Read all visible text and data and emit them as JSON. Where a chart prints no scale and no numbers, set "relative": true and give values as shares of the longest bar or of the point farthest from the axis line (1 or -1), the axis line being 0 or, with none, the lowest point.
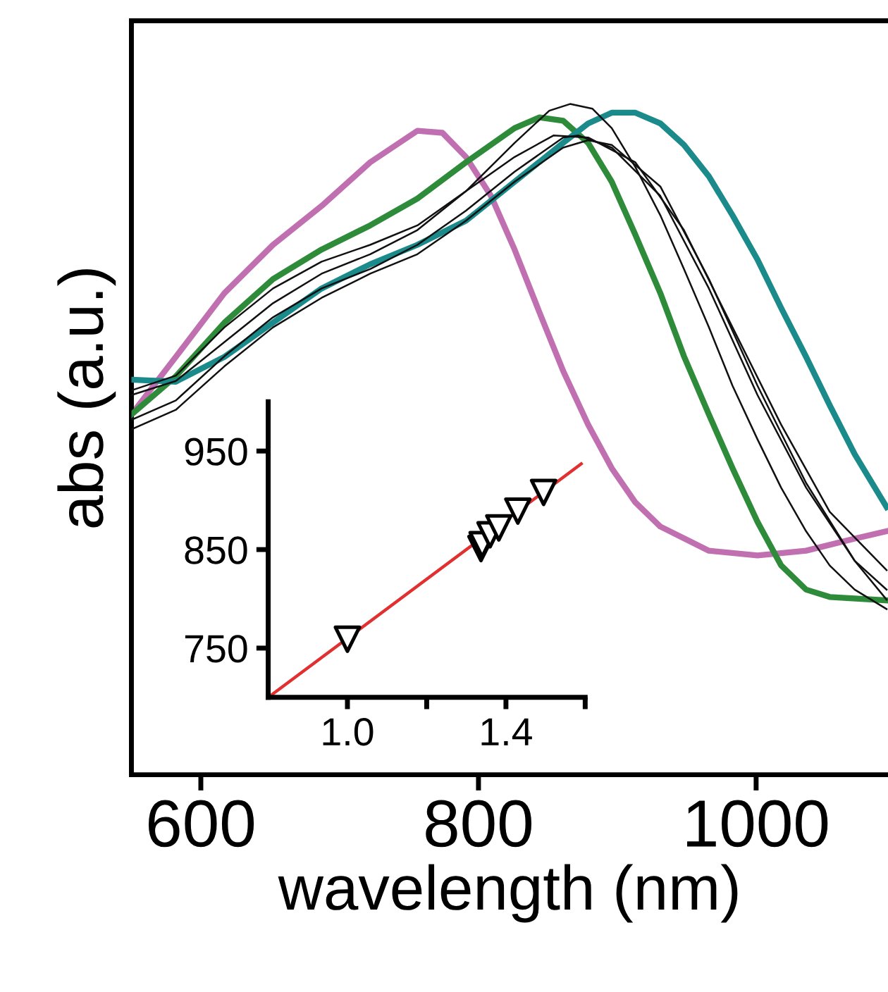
{
  "chart_data": [
    {
      "type": "line",
      "relative": true,
      "xlabel": "wavelength (nm)",
      "ylabel": "abs (a.u.)",
      "xlim": [
        550,
        1095
      ],
      "xticks": [
        600,
        800,
        1000
      ],
      "grid": false,
      "legend": false,
      "marker": "none",
      "line_style": "solid",
      "series": [
        {
          "color": "#c070b0",
          "x": [
            550,
            582,
            617,
            652,
            687,
            722,
            756,
            774,
            791,
            809,
            826,
            844,
            861,
            879,
            896,
            913,
            931,
            966,
            1001,
            1036,
            1071,
            1094
          ],
          "values": [
            0.537,
            0.623,
            0.718,
            0.79,
            0.848,
            0.913,
            0.96,
            0.957,
            0.921,
            0.863,
            0.783,
            0.689,
            0.602,
            0.522,
            0.457,
            0.406,
            0.37,
            0.334,
            0.327,
            0.334,
            0.352,
            0.363
          ]
        },
        {
          "color": "#2e8b3a",
          "x": [
            550,
            582,
            617,
            652,
            687,
            722,
            756,
            791,
            826,
            844,
            861,
            879,
            896,
            913,
            931,
            948,
            966,
            983,
            1001,
            1018,
            1036,
            1053,
            1094
          ],
          "values": [
            0.537,
            0.594,
            0.674,
            0.739,
            0.783,
            0.819,
            0.859,
            0.913,
            0.964,
            0.98,
            0.975,
            0.942,
            0.884,
            0.805,
            0.718,
            0.624,
            0.537,
            0.457,
            0.377,
            0.312,
            0.276,
            0.265,
            0.26
          ]
        },
        {
          "color": "#1a8a8a",
          "x": [
            550,
            582,
            617,
            652,
            687,
            722,
            756,
            791,
            826,
            861,
            879,
            896,
            913,
            931,
            948,
            966,
            983,
            1001,
            1018,
            1036,
            1053,
            1071,
            1094
          ],
          "values": [
            0.589,
            0.586,
            0.623,
            0.674,
            0.725,
            0.761,
            0.79,
            0.826,
            0.884,
            0.942,
            0.971,
            0.987,
            0.987,
            0.971,
            0.939,
            0.892,
            0.834,
            0.768,
            0.696,
            0.623,
            0.551,
            0.478,
            0.399
          ]
        },
        {
          "color": "#111111",
          "x": [
            550,
            582,
            617,
            652,
            687,
            722,
            756,
            791,
            826,
            851,
            866,
            882,
            896,
            913,
            931,
            948,
            966,
            983,
            1001,
            1018,
            1036,
            1053,
            1071,
            1094
          ],
          "values": [
            0.566,
            0.587,
            0.645,
            0.703,
            0.747,
            0.776,
            0.812,
            0.87,
            0.942,
            0.99,
            1.0,
            0.993,
            0.964,
            0.906,
            0.834,
            0.754,
            0.667,
            0.58,
            0.5,
            0.428,
            0.363,
            0.312,
            0.276,
            0.247
          ]
        },
        {
          "color": "#111111",
          "x": [
            550,
            582,
            617,
            652,
            687,
            722,
            756,
            791,
            826,
            861,
            872,
            896,
            931,
            966,
            1001,
            1036,
            1071,
            1094
          ],
          "values": [
            0.529,
            0.558,
            0.624,
            0.682,
            0.725,
            0.754,
            0.79,
            0.841,
            0.899,
            0.95,
            0.953,
            0.935,
            0.863,
            0.725,
            0.566,
            0.428,
            0.319,
            0.276
          ]
        },
        {
          "color": "#111111",
          "x": [
            550,
            582,
            617,
            652,
            687,
            722,
            756,
            791,
            826,
            861,
            879,
            896,
            931,
            966,
            1001,
            1036,
            1071,
            1094
          ],
          "values": [
            0.515,
            0.544,
            0.609,
            0.667,
            0.711,
            0.747,
            0.776,
            0.826,
            0.884,
            0.935,
            0.946,
            0.939,
            0.877,
            0.739,
            0.58,
            0.435,
            0.319,
            0.261
          ]
        },
        {
          "color": "#111111",
          "x": [
            550,
            582,
            617,
            652,
            687,
            722,
            756,
            791,
            826,
            854,
            879,
            913,
            948,
            983,
            1018,
            1053,
            1094
          ],
          "values": [
            0.573,
            0.595,
            0.667,
            0.725,
            0.765,
            0.79,
            0.819,
            0.87,
            0.921,
            0.953,
            0.95,
            0.913,
            0.812,
            0.667,
            0.522,
            0.392,
            0.305
          ]
        }
      ]
    },
    {
      "type": "scatter",
      "xlim": [
        0.8,
        1.6
      ],
      "ylim": [
        700,
        1000
      ],
      "xticks": [
        {
          "value": 1.0,
          "label": "1.0"
        },
        {
          "value": 1.2,
          "label": null
        },
        {
          "value": 1.4,
          "label": "1.4"
        },
        {
          "value": 1.6,
          "label": null
        }
      ],
      "yticks": [
        750,
        850,
        950
      ],
      "grid": false,
      "legend": false,
      "series": [
        {
          "type": "line",
          "marker": "none",
          "color": "#e03030",
          "x": [
            0.8,
            1.59
          ],
          "values": [
            700,
            937
          ]
        },
        {
          "type": "scatter",
          "marker": "triangle",
          "color": "#000000",
          "x": [
            1.0,
            1.337,
            1.34,
            1.36,
            1.382,
            1.43,
            1.495
          ],
          "values": [
            759,
            851,
            855,
            865,
            872,
            889,
            908
          ]
        }
      ]
    }
  ]
}
